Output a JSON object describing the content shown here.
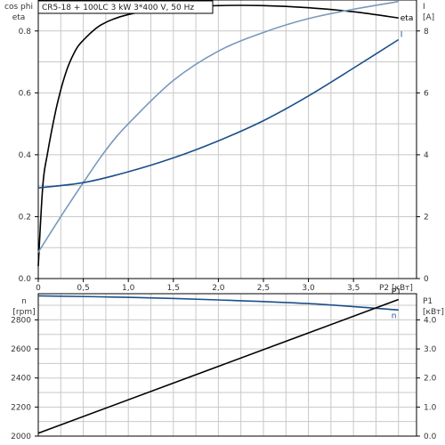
{
  "title": "CR5-18 + 100LC  3 kW  3*400 V, 50 Hz",
  "colors": {
    "eta": "#000000",
    "cosphi": "#7899bd",
    "current": "#1a4f8a",
    "p1": "#000000",
    "n": "#1a4f8a",
    "grid": "#c8c8c8",
    "axis": "#000000"
  },
  "chart_data": [
    {
      "type": "line",
      "title": "CR5-18 + 100LC  3 kW  3*400 V, 50 Hz",
      "xlabel": "P2 [кВт]",
      "ylabel_left": "cos phi\neta",
      "ylabel_right": "I\n[A]",
      "xlim": [
        0,
        4.2
      ],
      "ylim_left": [
        0,
        0.9
      ],
      "ylim_right": [
        0,
        9
      ],
      "x_ticks": [
        {
          "v": 0,
          "label": "0"
        },
        {
          "v": 0.5,
          "label": "0,5"
        },
        {
          "v": 1.0,
          "label": "1,0"
        },
        {
          "v": 1.5,
          "label": "1,5"
        },
        {
          "v": 2.0,
          "label": "2,0"
        },
        {
          "v": 2.5,
          "label": "2,5"
        },
        {
          "v": 3.0,
          "label": "3,0"
        },
        {
          "v": 3.5,
          "label": "3,5"
        }
      ],
      "y_ticks_left": [
        {
          "v": 0.0,
          "label": "0.0"
        },
        {
          "v": 0.2,
          "label": "0.2"
        },
        {
          "v": 0.4,
          "label": "0.4"
        },
        {
          "v": 0.6,
          "label": "0.6"
        },
        {
          "v": 0.8,
          "label": "0.8"
        }
      ],
      "y_ticks_right": [
        {
          "v": 0,
          "label": "0"
        },
        {
          "v": 2,
          "label": "2"
        },
        {
          "v": 4,
          "label": "4"
        },
        {
          "v": 6,
          "label": "6"
        },
        {
          "v": 8,
          "label": "8"
        }
      ],
      "grid": true,
      "series": [
        {
          "name": "eta",
          "axis": "left",
          "x": [
            0,
            0.05,
            0.1,
            0.2,
            0.3,
            0.4,
            0.5,
            0.7,
            1.0,
            1.5,
            2.0,
            2.5,
            3.0,
            3.5,
            4.0
          ],
          "y": [
            0.04,
            0.3,
            0.4,
            0.55,
            0.66,
            0.73,
            0.77,
            0.82,
            0.853,
            0.875,
            0.882,
            0.882,
            0.875,
            0.862,
            0.842
          ]
        },
        {
          "name": "cos phi",
          "axis": "left",
          "x": [
            0,
            0.25,
            0.5,
            0.75,
            1.0,
            1.5,
            2.0,
            2.5,
            3.0,
            3.5,
            4.0
          ],
          "y": [
            0.085,
            0.2,
            0.31,
            0.415,
            0.5,
            0.64,
            0.735,
            0.795,
            0.84,
            0.87,
            0.895
          ]
        },
        {
          "name": "I",
          "axis": "right",
          "x": [
            0,
            0.5,
            1.0,
            1.5,
            2.0,
            2.5,
            3.0,
            3.5,
            4.0
          ],
          "y": [
            2.93,
            3.1,
            3.45,
            3.9,
            4.45,
            5.1,
            5.9,
            6.8,
            7.72
          ]
        }
      ]
    },
    {
      "type": "line",
      "xlim": [
        0,
        4.2
      ],
      "ylabel_left": "n\n[rpm]",
      "ylabel_right": "P1\n[кВт]",
      "ylim_left": [
        2000,
        2980
      ],
      "y_ticks_left": [
        {
          "v": 2000,
          "label": "2000"
        },
        {
          "v": 2200,
          "label": "2200"
        },
        {
          "v": 2400,
          "label": "2400"
        },
        {
          "v": 2600,
          "label": "2600"
        },
        {
          "v": 2800,
          "label": "2800"
        }
      ],
      "y_ticks_right": [
        {
          "v": 2000,
          "label": "0.0"
        },
        {
          "v": 2200,
          "label": "1.0"
        },
        {
          "v": 2400,
          "label": "2.0"
        },
        {
          "v": 2600,
          "label": "3.0"
        },
        {
          "v": 2800,
          "label": "4.0"
        }
      ],
      "grid": true,
      "series": [
        {
          "name": "n",
          "axis": "left",
          "unit": "rpm",
          "x": [
            0,
            1.0,
            2.0,
            3.0,
            4.0
          ],
          "y": [
            2965,
            2955,
            2937,
            2912,
            2868
          ]
        },
        {
          "name": "P1",
          "axis": "right",
          "unit": "кВт",
          "x": [
            0,
            4.0
          ],
          "y": [
            0.1,
            4.7
          ]
        }
      ]
    }
  ]
}
